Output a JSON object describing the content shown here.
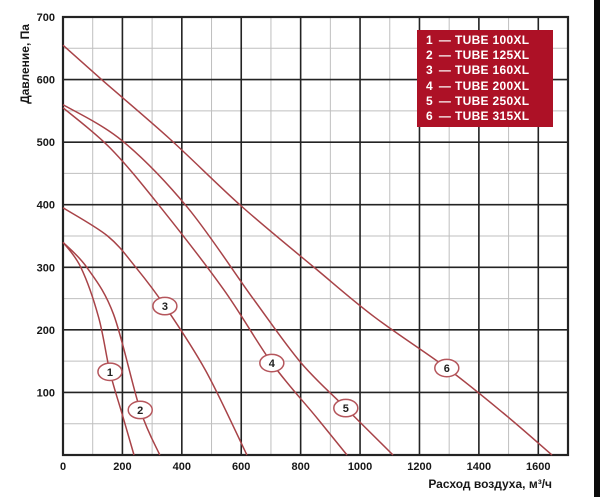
{
  "page": {
    "background": "#ffffff",
    "edge_bar_color": "#0c0c0c"
  },
  "chart_data": {
    "type": "line",
    "title": "",
    "xlabel": "Расход воздуха, м³/ч",
    "ylabel": "Давление, Па",
    "xlim": [
      0,
      1700
    ],
    "ylim": [
      0,
      700
    ],
    "x_major_ticks": [
      0,
      200,
      400,
      600,
      800,
      1000,
      1200,
      1400,
      1600
    ],
    "y_major_ticks": [
      100,
      200,
      300,
      400,
      500,
      600,
      700
    ],
    "x_minor_step": 100,
    "y_minor_step": 50,
    "grid": true,
    "legend_position": "top-right",
    "colors": {
      "curve": "#a84348",
      "circle_stroke": "#b5565c",
      "grid_major": "#232323",
      "grid_minor": "#bfbfbf",
      "border": "#232323",
      "legend_bg": "#ad1126",
      "legend_text": "#ffffff"
    },
    "series": [
      {
        "num": "1",
        "name": "TUBE 100XL",
        "label_at": [
          158,
          133
        ],
        "points": [
          [
            0,
            340
          ],
          [
            60,
            300
          ],
          [
            120,
            220
          ],
          [
            158,
            133
          ],
          [
            200,
            64
          ],
          [
            239,
            0
          ]
        ]
      },
      {
        "num": "2",
        "name": "TUBE 125XL",
        "label_at": [
          260,
          72
        ],
        "points": [
          [
            0,
            340
          ],
          [
            80,
            300
          ],
          [
            170,
            225
          ],
          [
            260,
            72
          ],
          [
            326,
            0
          ]
        ]
      },
      {
        "num": "3",
        "name": "TUBE 160XL",
        "label_at": [
          343,
          238
        ],
        "points": [
          [
            0,
            395
          ],
          [
            150,
            350
          ],
          [
            245,
            300
          ],
          [
            343,
            238
          ],
          [
            480,
            135
          ],
          [
            619,
            0
          ]
        ]
      },
      {
        "num": "4",
        "name": "TUBE 200XL",
        "label_at": [
          703,
          147
        ],
        "points": [
          [
            0,
            555
          ],
          [
            160,
            490
          ],
          [
            330,
            395
          ],
          [
            540,
            265
          ],
          [
            703,
            147
          ],
          [
            850,
            62
          ],
          [
            956,
            0
          ]
        ]
      },
      {
        "num": "5",
        "name": "TUBE 250XL",
        "label_at": [
          952,
          75
        ],
        "points": [
          [
            0,
            560
          ],
          [
            200,
            502
          ],
          [
            420,
            395
          ],
          [
            640,
            250
          ],
          [
            800,
            148
          ],
          [
            952,
            75
          ],
          [
            1111,
            0
          ]
        ]
      },
      {
        "num": "6",
        "name": "TUBE 315XL",
        "label_at": [
          1292,
          139
        ],
        "points": [
          [
            0,
            655
          ],
          [
            130,
            600
          ],
          [
            360,
            505
          ],
          [
            600,
            398
          ],
          [
            850,
            298
          ],
          [
            1050,
            220
          ],
          [
            1292,
            139
          ],
          [
            1480,
            68
          ],
          [
            1646,
            0
          ]
        ]
      }
    ],
    "legend": {
      "dash": "—",
      "items": [
        {
          "num": "1",
          "label": "TUBE 100XL"
        },
        {
          "num": "2",
          "label": "TUBE 125XL"
        },
        {
          "num": "3",
          "label": "TUBE 160XL"
        },
        {
          "num": "4",
          "label": "TUBE 200XL"
        },
        {
          "num": "5",
          "label": "TUBE 250XL"
        },
        {
          "num": "6",
          "label": "TUBE 315XL"
        }
      ]
    }
  }
}
